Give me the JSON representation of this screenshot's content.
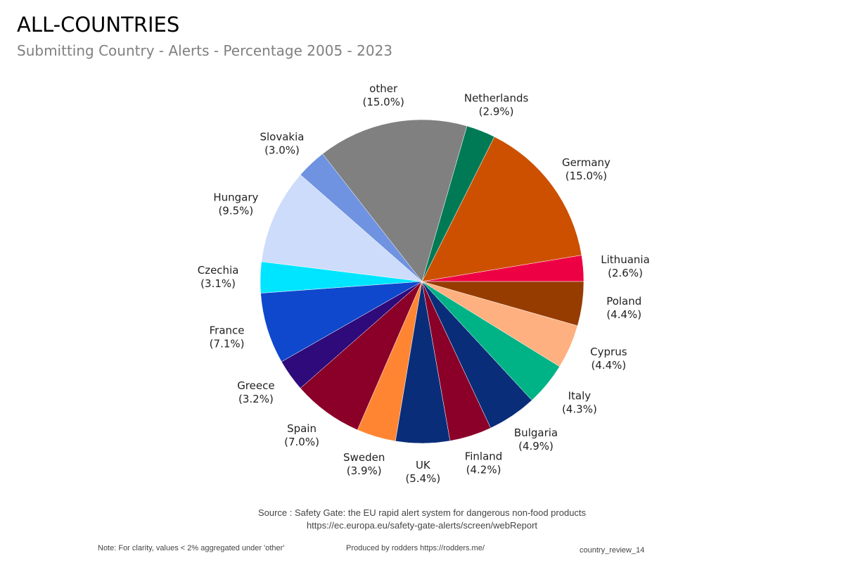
{
  "header": {
    "title": "ALL-COUNTRIES",
    "subtitle": "Submitting Country - Alerts - Percentage 2005 - 2023"
  },
  "chart_data": {
    "type": "pie",
    "title": "ALL-COUNTRIES",
    "subtitle": "Submitting Country - Alerts - Percentage 2005 - 2023",
    "start": "east",
    "direction": "counterclockwise",
    "slices": [
      {
        "label": "Lithuania",
        "value": 2.6,
        "text": "(2.6%)",
        "color": "#ee0044"
      },
      {
        "label": "Germany",
        "value": 15.0,
        "text": "(15.0%)",
        "color": "#cc5000"
      },
      {
        "label": "Netherlands",
        "value": 2.9,
        "text": "(2.9%)",
        "color": "#007a55"
      },
      {
        "label": "other",
        "value": 15.0,
        "text": "(15.0%)",
        "color": "#808080"
      },
      {
        "label": "Slovakia",
        "value": 3.0,
        "text": "(3.0%)",
        "color": "#6f93e0"
      },
      {
        "label": "Hungary",
        "value": 9.5,
        "text": "(9.5%)",
        "color": "#cddcfa"
      },
      {
        "label": "Czechia",
        "value": 3.1,
        "text": "(3.1%)",
        "color": "#00e5ff"
      },
      {
        "label": "France",
        "value": 7.1,
        "text": "(7.1%)",
        "color": "#0f48cc"
      },
      {
        "label": "Greece",
        "value": 3.2,
        "text": "(3.2%)",
        "color": "#2e0a7a"
      },
      {
        "label": "Spain",
        "value": 7.0,
        "text": "(7.0%)",
        "color": "#8a0028"
      },
      {
        "label": "Sweden",
        "value": 3.9,
        "text": "(3.9%)",
        "color": "#ff8533"
      },
      {
        "label": "UK",
        "value": 5.4,
        "text": "(5.4%)",
        "color": "#0a2d7a"
      },
      {
        "label": "Finland",
        "value": 4.2,
        "text": "(4.2%)",
        "color": "#8a0028"
      },
      {
        "label": "Bulgaria",
        "value": 4.9,
        "text": "(4.9%)",
        "color": "#0a2d7a"
      },
      {
        "label": "Italy",
        "value": 4.3,
        "text": "(4.3%)",
        "color": "#00b386"
      },
      {
        "label": "Cyprus",
        "value": 4.4,
        "text": "(4.4%)",
        "color": "#ffb080"
      },
      {
        "label": "Poland",
        "value": 4.4,
        "text": "(4.4%)",
        "color": "#963c00"
      }
    ]
  },
  "footer": {
    "source_line1": "Source : Safety Gate: the EU rapid alert system for dangerous non-food products",
    "source_line2": "https://ec.europa.eu/safety-gate-alerts/screen/webReport",
    "note": "Note: For clarity, values < 2% aggregated under 'other'",
    "produced_by": "Produced by rodders https://rodders.me/",
    "report_id": "country_review_14"
  }
}
